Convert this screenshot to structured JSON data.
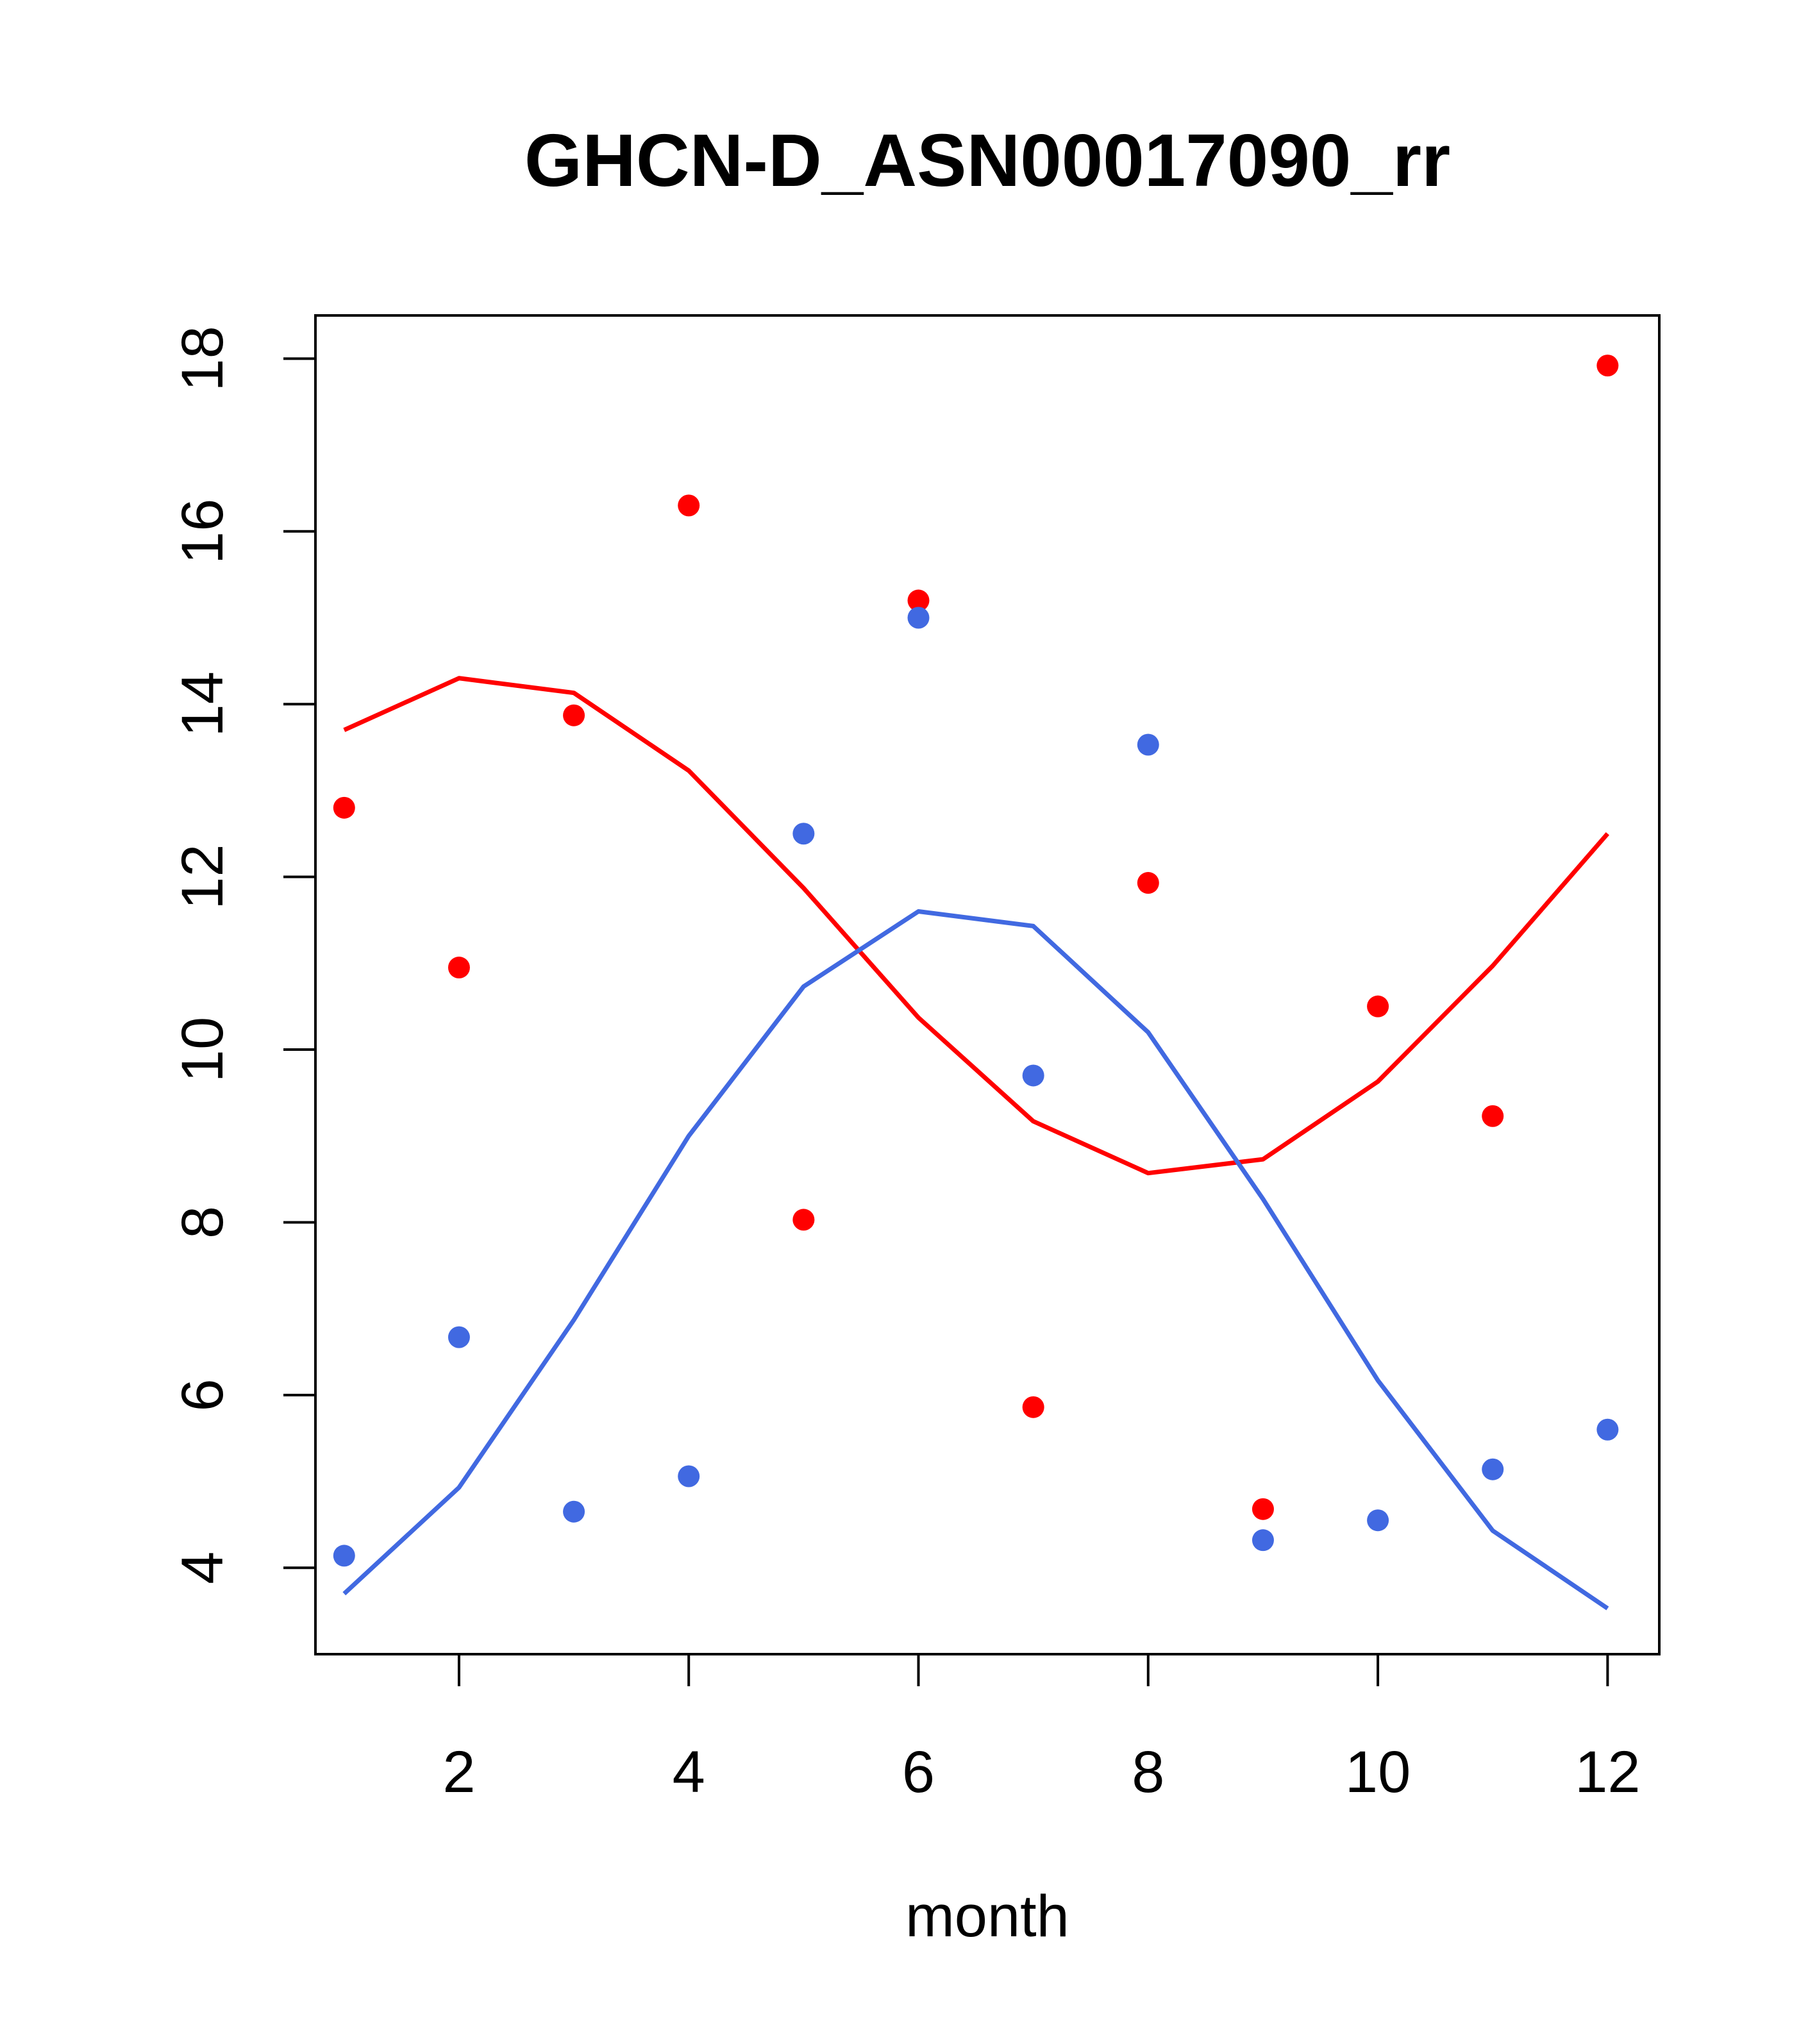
{
  "chart_data": {
    "type": "scatter",
    "title": "GHCN-D_ASN00017090_rr",
    "xlabel": "month",
    "ylabel": "",
    "xlim": [
      0.75,
      12.45
    ],
    "ylim": [
      3.0,
      18.5
    ],
    "x_ticks": [
      2,
      4,
      6,
      8,
      10,
      12
    ],
    "y_ticks": [
      4,
      6,
      8,
      10,
      12,
      14,
      16,
      18
    ],
    "x": [
      1,
      2,
      3,
      4,
      5,
      6,
      7,
      8,
      9,
      10,
      11,
      12
    ],
    "grid": false,
    "series": [
      {
        "kind": "points",
        "color": "#ff0000",
        "values": [
          12.8,
          10.95,
          13.87,
          16.3,
          8.03,
          15.2,
          5.86,
          11.93,
          4.68,
          10.5,
          9.23,
          17.92
        ]
      },
      {
        "kind": "points",
        "color": "#4169e1",
        "values": [
          4.14,
          6.67,
          4.65,
          5.06,
          12.5,
          15.0,
          9.7,
          13.53,
          4.32,
          4.55,
          5.14,
          5.6
        ]
      },
      {
        "kind": "line",
        "color": "#ff0000",
        "values": [
          13.7,
          14.3,
          14.13,
          13.23,
          11.87,
          10.37,
          9.17,
          8.57,
          8.73,
          9.63,
          10.97,
          12.5
        ]
      },
      {
        "kind": "line",
        "color": "#4169e1",
        "values": [
          3.7,
          4.93,
          6.87,
          9.0,
          10.73,
          11.6,
          11.43,
          10.2,
          8.27,
          6.17,
          4.43,
          3.53
        ]
      }
    ]
  }
}
